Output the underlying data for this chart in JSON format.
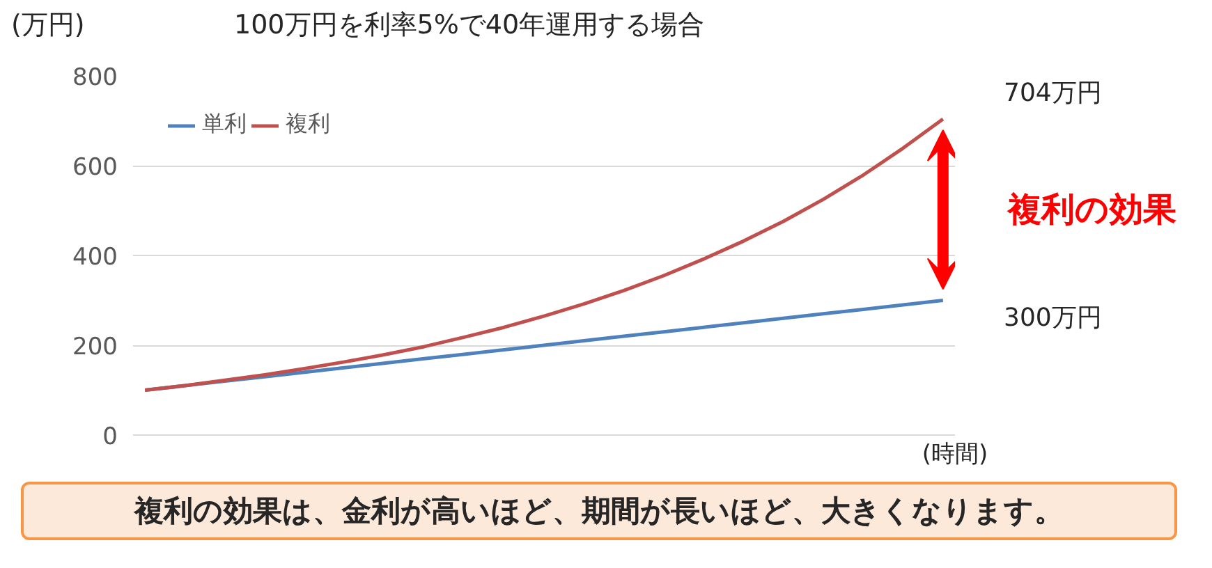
{
  "chart_data": {
    "type": "line",
    "title": "100万円を利率5%で40年運用する場合",
    "ylabel": "(万円)",
    "xlabel": "(時間)",
    "categories": [
      null,
      null,
      null,
      null,
      null,
      null,
      null,
      null,
      null,
      null,
      null,
      null,
      null,
      null,
      null,
      null,
      null,
      null,
      null,
      null,
      null
    ],
    "series": [
      {
        "name": "単利",
        "color": "#4f81bd",
        "values": [
          100,
          110,
          120,
          130,
          140,
          150,
          160,
          170,
          180,
          190,
          200,
          210,
          220,
          230,
          240,
          250,
          260,
          270,
          280,
          290,
          300
        ]
      },
      {
        "name": "複利",
        "color": "#c0504d",
        "values": [
          100,
          110,
          122,
          134,
          148,
          163,
          179,
          197,
          218,
          240,
          265,
          292,
          322,
          355,
          392,
          432,
          476,
          525,
          579,
          639,
          704
        ]
      }
    ],
    "ylim": [
      0,
      800
    ],
    "yticks": [
      0,
      200,
      400,
      600,
      800
    ],
    "grid": "y",
    "legend": "top left",
    "line_style": "solid",
    "marker": "none",
    "annotations": [
      "704万円",
      "300万円",
      "複利の効果",
      "複利の効果は、金利が高いほど、期間が長いほど、大きくなります。"
    ]
  }
}
